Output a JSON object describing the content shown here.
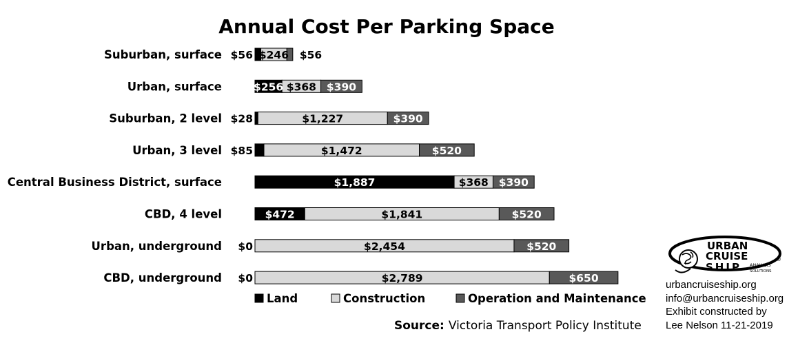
{
  "chart_data": {
    "type": "bar",
    "orientation": "horizontal",
    "stacked": true,
    "title": "Annual Cost Per Parking Space",
    "categories": [
      "Suburban, surface",
      "Urban, surface",
      "Suburban, 2 level",
      "Urban, 3 level",
      "Central Business District, surface",
      "CBD, 4 level",
      "Urban, underground",
      "CBD, underground"
    ],
    "series": [
      {
        "name": "Land",
        "color": "#000000",
        "values": [
          56,
          256,
          28,
          85,
          1887,
          472,
          0,
          0
        ],
        "labels": [
          "$56",
          "$256",
          "$28",
          "$85",
          "$1,887",
          "$472",
          "$0",
          "$0"
        ]
      },
      {
        "name": "Construction",
        "color": "#d9d9d9",
        "values": [
          246,
          368,
          1227,
          1472,
          368,
          1841,
          2454,
          2789
        ],
        "labels": [
          "$246",
          "$368",
          "$1,227",
          "$1,472",
          "$368",
          "$1,841",
          "$2,454",
          "$2,789"
        ]
      },
      {
        "name": "Operation and Maintenance",
        "color": "#595959",
        "values": [
          56,
          390,
          390,
          520,
          390,
          520,
          520,
          650
        ],
        "labels": [
          "$56",
          "$390",
          "$390",
          "$520",
          "$390",
          "$520",
          "$520",
          "$650"
        ]
      }
    ],
    "legend_position": "bottom",
    "grid": false,
    "xlim": [
      0,
      3500
    ]
  },
  "source": {
    "label": "Source:",
    "text": "Victoria Transport Policy Institute"
  },
  "credits": {
    "website": "urbancruiseship.org",
    "email": "info@urbancruiseship.org",
    "line1": "Exhibit constructed by",
    "line2": "Lee Nelson 11-21-2019"
  },
  "logo": {
    "line1": "URBAN",
    "line2": "CRUISE",
    "line3": "SHIP",
    "tagline1": "ANALYSIS",
    "tagline2": "SOLUTIONS",
    "mark": "®"
  }
}
